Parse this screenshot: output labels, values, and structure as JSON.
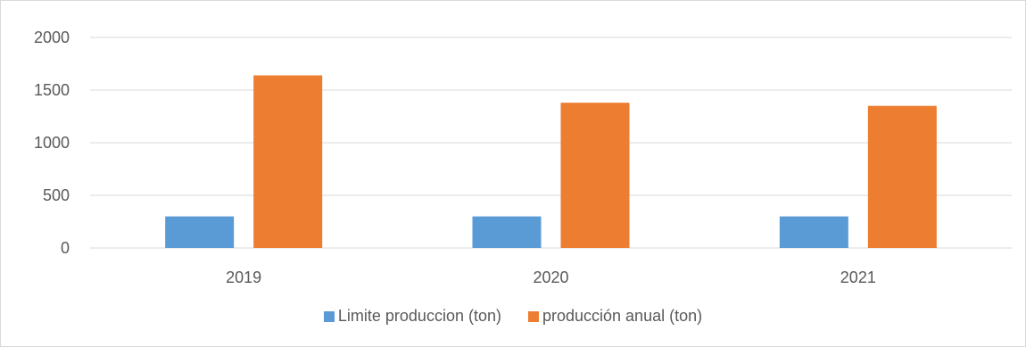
{
  "chart_data": {
    "type": "bar",
    "categories": [
      "2019",
      "2020",
      "2021"
    ],
    "series": [
      {
        "name": "Limite produccion (ton)",
        "values": [
          300,
          300,
          300
        ],
        "color": "#5b9bd5"
      },
      {
        "name": "producción anual (ton)",
        "values": [
          1640,
          1380,
          1350
        ],
        "color": "#ed7d31"
      }
    ],
    "yticks": [
      0,
      500,
      1000,
      1500,
      2000
    ],
    "ylim": [
      0,
      2000
    ],
    "grid": true,
    "legend_position": "bottom",
    "gridline_color": "#d9d9d9",
    "text_color": "#595959"
  }
}
